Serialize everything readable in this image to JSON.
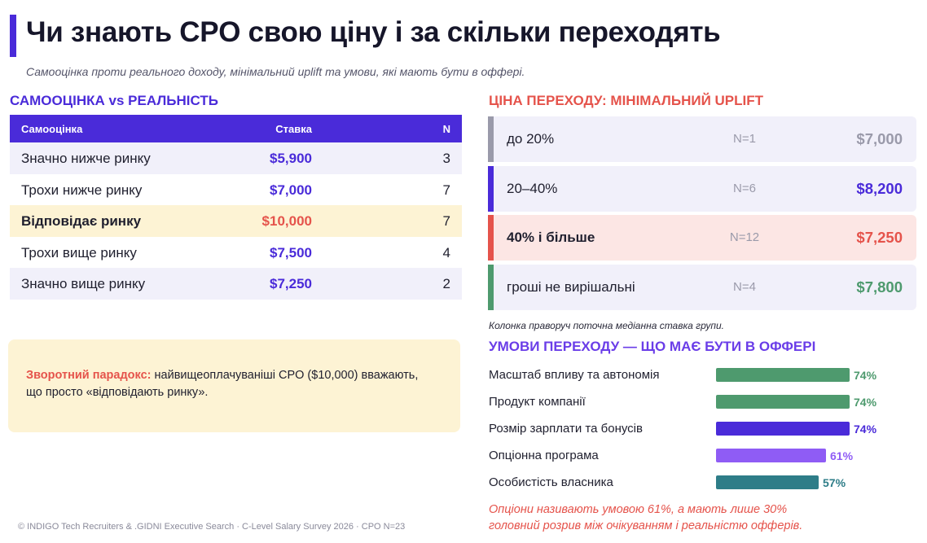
{
  "title": "Чи знають CPO свою ціну і за скільки переходять",
  "subtitle": "Самооцінка проти реального доходу, мінімальний uplift та умови, які мають бути в оффері.",
  "colors": {
    "primary": "#4a2bd9",
    "accent": "#e5534b",
    "highlight": "#fdf3d4",
    "green": "#4e9a6e",
    "violet": "#8f5cf5",
    "teal": "#2e7d88",
    "gray": "#9a9aaa"
  },
  "left": {
    "heading": "САМООЦІНКА vs РЕАЛЬНІСТЬ",
    "table": {
      "headers": [
        "Самооцінка",
        "Ставка",
        "N"
      ],
      "rows": [
        {
          "label": "Значно нижче ринку",
          "rate": "$5,900",
          "n": "3"
        },
        {
          "label": "Трохи нижче ринку",
          "rate": "$7,000",
          "n": "7"
        },
        {
          "label": "Відповідає ринку",
          "rate": "$10,000",
          "n": "7"
        },
        {
          "label": "Трохи вище ринку",
          "rate": "$7,500",
          "n": "4"
        },
        {
          "label": "Значно вище ринку",
          "rate": "$7,250",
          "n": "2"
        }
      ]
    },
    "paradox": {
      "lead": "Зворотний парадокс:",
      "text": " найвищеоплачуваніші CPO ($10,000) вважають, що просто «відповідають ринку»."
    }
  },
  "uplift": {
    "heading": "ЦІНА ПЕРЕХОДУ: МІНІМАЛЬНИЙ UPLIFT",
    "rows": [
      {
        "label": "до 20%",
        "n": "N=1",
        "price": "$7,000"
      },
      {
        "label": "20–40%",
        "n": "N=6",
        "price": "$8,200"
      },
      {
        "label": "40% і більше",
        "n": "N=12",
        "price": "$7,250"
      },
      {
        "label": "гроші не вирішальні",
        "n": "N=4",
        "price": "$7,800"
      }
    ],
    "note": "Колонка праворуч поточна медіанна ставка групи."
  },
  "conditions": {
    "heading": "УМОВИ ПЕРЕХОДУ — ЩО МАЄ БУТИ В ОФФЕРІ",
    "items": [
      {
        "label": "Масштаб впливу та автономія",
        "pct_label": "74%",
        "value": 0.74
      },
      {
        "label": "Продукт компанії",
        "pct_label": "74%",
        "value": 0.74
      },
      {
        "label": "Розмір зарплати та бонусів",
        "pct_label": "74%",
        "value": 0.74
      },
      {
        "label": "Опціонна програма",
        "pct_label": "61%",
        "value": 0.61
      },
      {
        "label": "Особистість власника",
        "pct_label": "57%",
        "value": 0.57
      }
    ],
    "note_line1": "Опціони називають умовою 61%, а мають лише 30%",
    "note_line2": " головний розрив між очікуванням і реальністю офферів."
  },
  "footer": "© INDIGO Tech Recruiters & .GIDNI Executive Search · C-Level Salary Survey 2026 · CPO N=23"
}
